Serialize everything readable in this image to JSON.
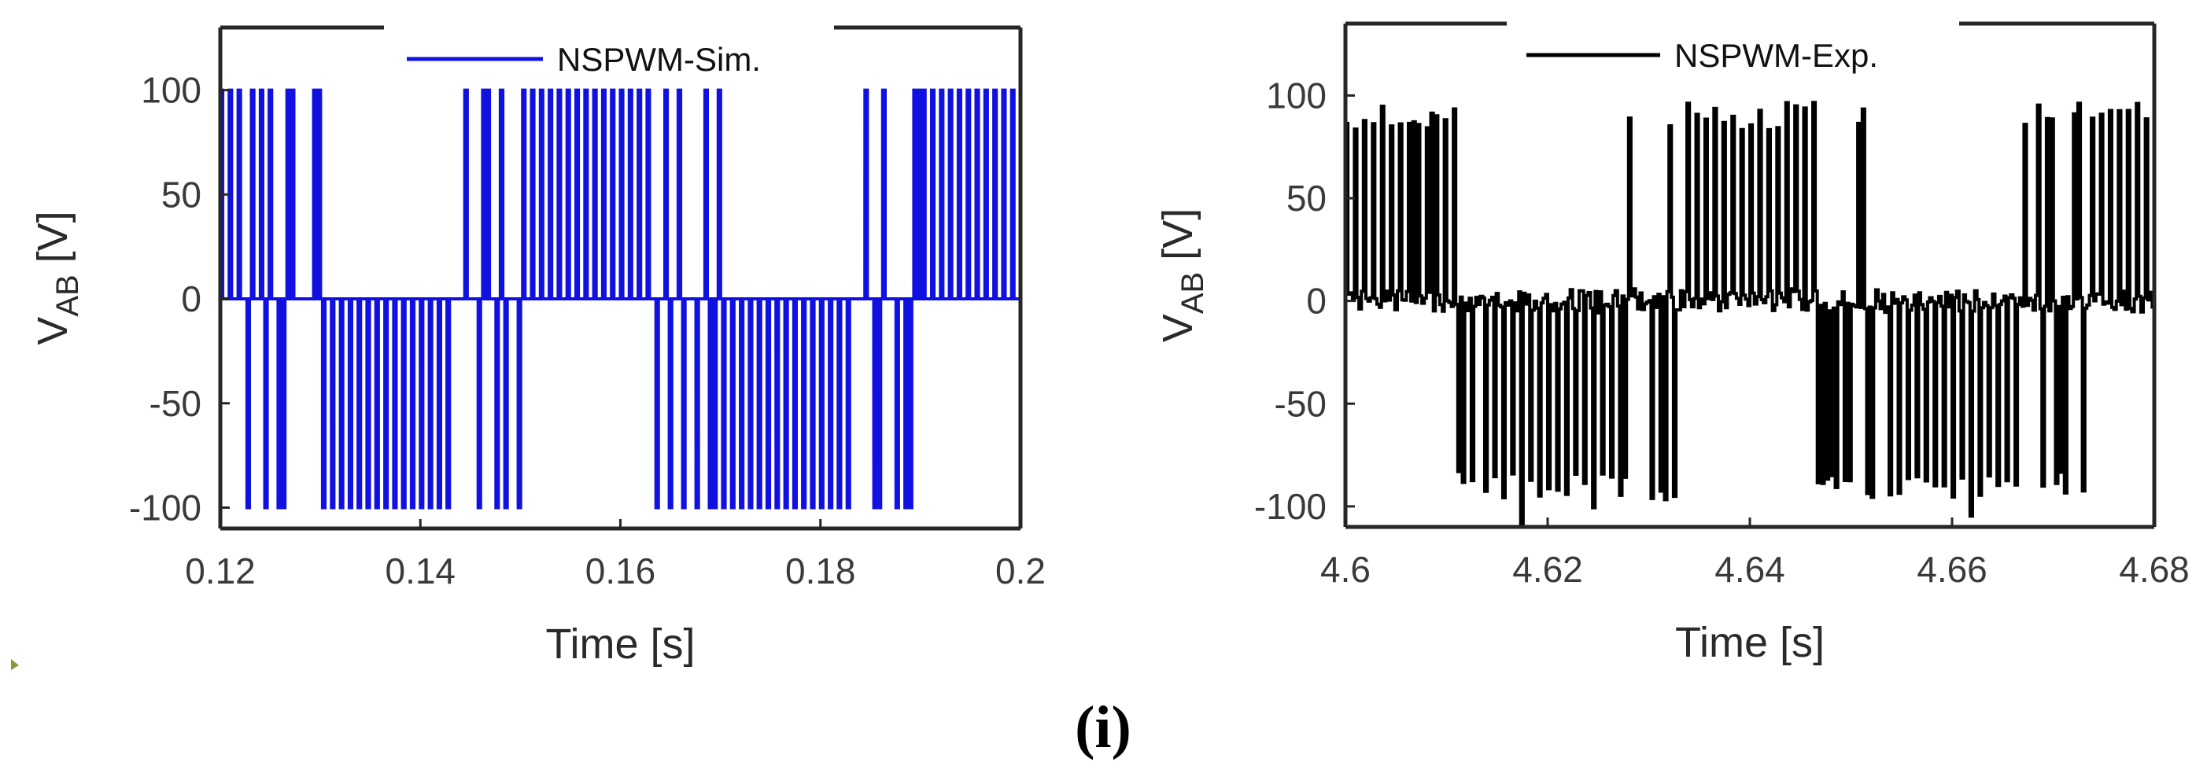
{
  "caption": "(i)",
  "chart_data": [
    {
      "type": "line",
      "title": "",
      "xlabel": "Time [s]",
      "ylabel": "V",
      "ylabel_sub": "AB",
      "ylabel_unit": "[V]",
      "xlim": [
        0.12,
        0.2
      ],
      "ylim": [
        -110,
        130
      ],
      "xticks": [
        0.12,
        0.14,
        0.16,
        0.18,
        0.2
      ],
      "xtick_labels": [
        "0.12",
        "0.14",
        "0.16",
        "0.18",
        "0.2"
      ],
      "yticks": [
        100,
        50,
        0,
        -50,
        -100
      ],
      "ytick_labels": [
        "100",
        "50",
        "0",
        "-50",
        "-100"
      ],
      "legend": "NSPWM-Sim.",
      "legend_position": "top",
      "color": "#1010e0",
      "series": [
        {
          "name": "NSPWM-Sim.",
          "fundamental_period_s": 0.04,
          "segments": [
            {
              "t_start": 0.12,
              "t_end": 0.1225,
              "levels": [
                0,
                100
              ]
            },
            {
              "t_start": 0.1225,
              "t_end": 0.13,
              "levels": [
                -100,
                0,
                100
              ]
            },
            {
              "t_start": 0.13,
              "t_end": 0.1433,
              "levels": [
                -100,
                0
              ]
            },
            {
              "t_start": 0.1433,
              "t_end": 0.15,
              "levels": [
                -100,
                0,
                100
              ]
            },
            {
              "t_start": 0.15,
              "t_end": 0.1633,
              "levels": [
                0,
                100
              ]
            },
            {
              "t_start": 0.1633,
              "t_end": 0.17,
              "levels": [
                -100,
                0,
                100
              ]
            },
            {
              "t_start": 0.17,
              "t_end": 0.1833,
              "levels": [
                -100,
                0
              ]
            },
            {
              "t_start": 0.1833,
              "t_end": 0.19,
              "levels": [
                -100,
                0,
                100
              ]
            },
            {
              "t_start": 0.19,
              "t_end": 0.2,
              "levels": [
                0,
                100
              ]
            }
          ]
        }
      ]
    },
    {
      "type": "line",
      "title": "",
      "xlabel": "Time [s]",
      "ylabel": "V",
      "ylabel_sub": "AB",
      "ylabel_unit": "[V]",
      "xlim": [
        4.6,
        4.68
      ],
      "ylim": [
        -110,
        135
      ],
      "xticks": [
        4.6,
        4.62,
        4.64,
        4.66,
        4.68
      ],
      "xtick_labels": [
        "4.6",
        "4.62",
        "4.64",
        "4.66",
        "4.68"
      ],
      "yticks": [
        100,
        50,
        0,
        -50,
        -100
      ],
      "ytick_labels": [
        "100",
        "50",
        "0",
        "-50",
        "-100"
      ],
      "legend": "NSPWM-Exp.",
      "legend_position": "top",
      "color": "#000000",
      "series": [
        {
          "name": "NSPWM-Exp.",
          "fundamental_period_s": 0.04,
          "approx_peak_V": 90,
          "segments": [
            {
              "t_start": 4.6,
              "t_end": 4.6065,
              "levels": [
                0,
                90
              ]
            },
            {
              "t_start": 4.6065,
              "t_end": 4.613,
              "levels": [
                -90,
                0,
                90
              ]
            },
            {
              "t_start": 4.613,
              "t_end": 4.6265,
              "levels": [
                -90,
                0
              ]
            },
            {
              "t_start": 4.6265,
              "t_end": 4.633,
              "levels": [
                -90,
                0,
                90
              ]
            },
            {
              "t_start": 4.633,
              "t_end": 4.6465,
              "levels": [
                0,
                90
              ]
            },
            {
              "t_start": 4.6465,
              "t_end": 4.653,
              "levels": [
                -90,
                0,
                90
              ]
            },
            {
              "t_start": 4.653,
              "t_end": 4.6665,
              "levels": [
                -90,
                0
              ]
            },
            {
              "t_start": 4.6665,
              "t_end": 4.673,
              "levels": [
                -90,
                0,
                90
              ]
            },
            {
              "t_start": 4.673,
              "t_end": 4.68,
              "levels": [
                0,
                90
              ]
            }
          ]
        }
      ]
    }
  ]
}
